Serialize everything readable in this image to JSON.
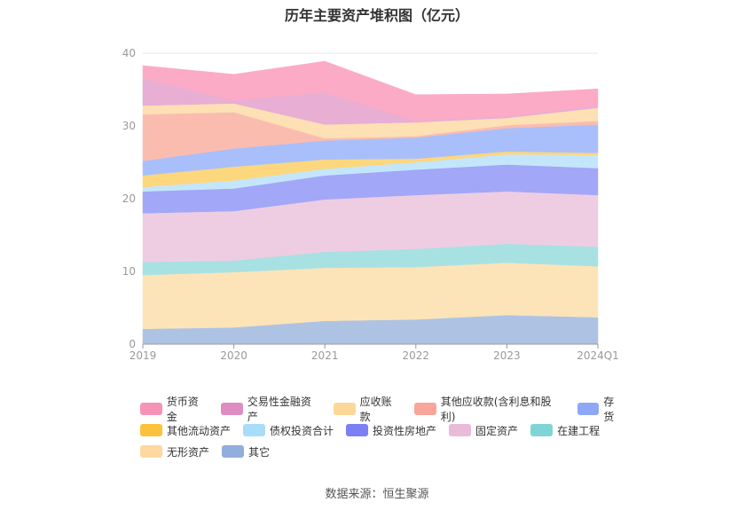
{
  "title": "历年主要资产堆积图（亿元）",
  "source": "数据来源：恒生聚源",
  "chart_data": {
    "type": "area",
    "stacked": true,
    "title": "历年主要资产堆积图（亿元）",
    "categories": [
      "2019",
      "2020",
      "2021",
      "2022",
      "2023",
      "2024Q1"
    ],
    "ylim": [
      0,
      40
    ],
    "yticks": [
      0,
      10,
      20,
      30,
      40
    ],
    "grid": true,
    "legend_position": "bottom",
    "series": [
      {
        "name": "其它",
        "color": "#aec3e3",
        "values": [
          2.1,
          2.3,
          3.2,
          3.4,
          4.0,
          3.7
        ]
      },
      {
        "name": "无形资产",
        "color": "#fde4b8",
        "values": [
          7.4,
          7.6,
          7.3,
          7.2,
          7.2,
          7.0
        ]
      },
      {
        "name": "在建工程",
        "color": "#a8e1e2",
        "values": [
          1.8,
          1.6,
          2.2,
          2.5,
          2.6,
          2.7
        ]
      },
      {
        "name": "固定资产",
        "color": "#eecde3",
        "values": [
          6.7,
          6.8,
          7.2,
          7.4,
          7.2,
          7.1
        ]
      },
      {
        "name": "投资性房地产",
        "color": "#a2a7f7",
        "values": [
          3.0,
          3.1,
          3.3,
          3.5,
          3.7,
          3.7
        ]
      },
      {
        "name": "债权投资合计",
        "color": "#c4e6fb",
        "values": [
          0.6,
          1.1,
          0.9,
          1.0,
          1.4,
          1.8
        ]
      },
      {
        "name": "其他流动资产",
        "color": "#fdd77e",
        "values": [
          1.6,
          1.9,
          1.3,
          0.5,
          0.4,
          0.3
        ]
      },
      {
        "name": "存货",
        "color": "#a9bffb",
        "values": [
          2.0,
          2.5,
          2.6,
          2.9,
          3.2,
          3.9
        ]
      },
      {
        "name": "其他应收款(含利息和股利)",
        "color": "#fbbcb0",
        "values": [
          6.4,
          5.0,
          0.3,
          0.2,
          0.4,
          0.5
        ]
      },
      {
        "name": "应收账款",
        "color": "#fde0b4",
        "values": [
          1.2,
          1.2,
          1.9,
          1.9,
          1.0,
          1.8
        ]
      },
      {
        "name": "交易性金融资产",
        "color": "#e8aed4",
        "values": [
          3.8,
          0.4,
          4.4,
          0.2,
          0.2,
          0.3
        ]
      },
      {
        "name": "货币资金",
        "color": "#fbabc6",
        "values": [
          1.7,
          3.6,
          4.3,
          3.6,
          3.1,
          2.3
        ]
      }
    ]
  },
  "legend_rows": [
    [
      {
        "label": "货币资金",
        "color": "#f793b7"
      },
      {
        "label": "交易性金融资产",
        "color": "#de8cc2"
      },
      {
        "label": "应收账款",
        "color": "#fcd898"
      },
      {
        "label": "其他应收款(含利息和股利)",
        "color": "#f8a59a"
      },
      {
        "label": "存货",
        "color": "#8ea8f8"
      }
    ],
    [
      {
        "label": "其他流动资产",
        "color": "#fcc23c"
      },
      {
        "label": "债权投资合计",
        "color": "#a9dcf8"
      },
      {
        "label": "投资性房地产",
        "color": "#7d7ff4"
      },
      {
        "label": "固定资产",
        "color": "#e9bbd8"
      },
      {
        "label": "在建工程",
        "color": "#7fd5d5"
      }
    ],
    [
      {
        "label": "无形资产",
        "color": "#fdd9a0"
      },
      {
        "label": "其它",
        "color": "#91aedc"
      }
    ]
  ]
}
